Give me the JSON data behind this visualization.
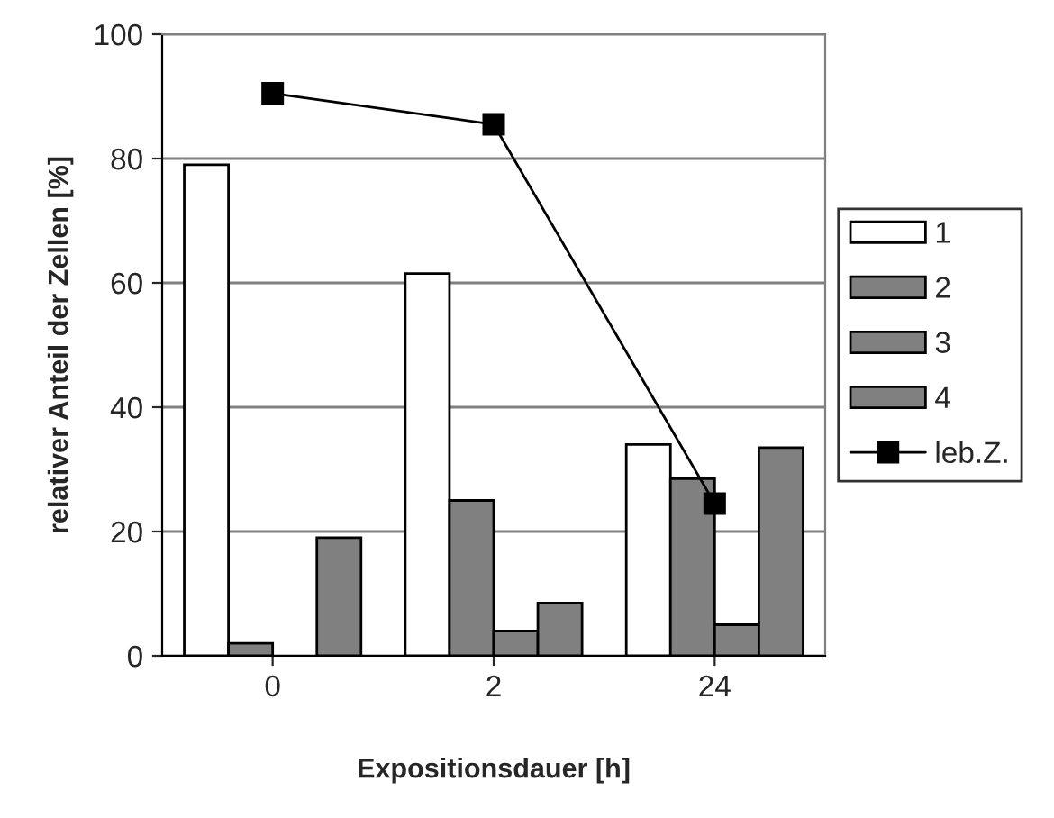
{
  "chart_data": {
    "type": "bar",
    "xlabel": "Expositionsdauer [h]",
    "ylabel": "relativer Anteil der Zellen [%]",
    "categories": [
      "0",
      "2",
      "24"
    ],
    "series": [
      {
        "name": "1",
        "color": "#ffffff",
        "values": [
          79,
          61.5,
          34
        ]
      },
      {
        "name": "2",
        "color": "#808080",
        "values": [
          2,
          25,
          28.5
        ]
      },
      {
        "name": "3",
        "color": "#808080",
        "values": [
          null,
          4,
          5
        ]
      },
      {
        "name": "4",
        "color": "#808080",
        "values": [
          19,
          8.5,
          33.5
        ]
      },
      {
        "name": "leb.Z.",
        "type": "line",
        "color": "#000000",
        "values": [
          90.5,
          85.5,
          24.5
        ],
        "marker": "square"
      }
    ],
    "ylim": [
      0,
      100
    ],
    "yticks": [
      0,
      20,
      40,
      60,
      80,
      100
    ],
    "grid": "y",
    "legend": "right"
  }
}
